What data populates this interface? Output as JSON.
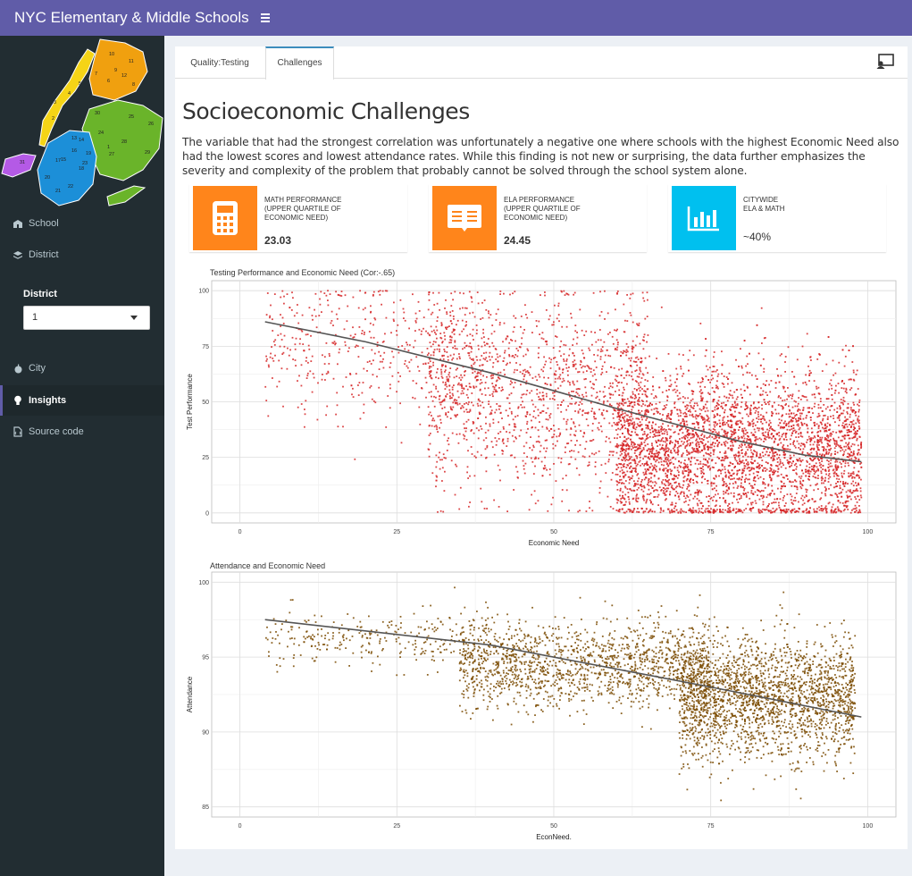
{
  "app": {
    "title": "NYC Elementary & Middle Schools"
  },
  "sidebar": {
    "map_labels": [
      "1",
      "2",
      "3",
      "4",
      "5",
      "6",
      "7",
      "8",
      "9",
      "10",
      "11",
      "12",
      "13",
      "14",
      "15",
      "16",
      "17",
      "18",
      "19",
      "20",
      "21",
      "22",
      "23",
      "24",
      "25",
      "26",
      "27",
      "28",
      "29",
      "30",
      "31"
    ],
    "items": [
      {
        "label": "School",
        "icon": "school-icon"
      },
      {
        "label": "District",
        "icon": "layers-icon"
      },
      {
        "label": "City",
        "icon": "apple-icon"
      },
      {
        "label": "Insights",
        "icon": "lightbulb-icon",
        "active": true
      },
      {
        "label": "Source code",
        "icon": "file-code-icon"
      }
    ],
    "district_label": "District",
    "district_value": "1"
  },
  "tabs": [
    {
      "label": "Quality:Testing"
    },
    {
      "label": "Challenges",
      "active": true
    }
  ],
  "main": {
    "title": "Socioeconomic Challenges",
    "paragraph": "The variable that had the strongest correlation was unfortunately a negative one where schools with the highest Economic Need also had the lowest scores and lowest attendance rates. While this finding is not new or surprising, the data further emphasizes the severity and complexity of the problem that probably cannot be solved through the school system alone."
  },
  "info_boxes": [
    {
      "text": "MATH PERFORMANCE\n(UPPER QUARTILE OF\nECONOMIC NEED)",
      "value": "23.03",
      "color": "#ff851b",
      "icon": "calculator-icon"
    },
    {
      "text": "ELA PERFORMANCE\n(UPPER QUARTILE OF\nECONOMIC NEED)",
      "value": "24.45",
      "color": "#ff851b",
      "icon": "book-icon"
    },
    {
      "text": "CITYWIDE\nELA & MATH",
      "value": "~40%",
      "color": "#00c0ef",
      "icon": "bar-chart-icon"
    }
  ],
  "colors": {
    "header": "#605ca8",
    "sidebar": "#222d32",
    "scatter1": "#d62728",
    "scatter2": "#7a4a00",
    "trend": "#555555"
  },
  "chart_data": [
    {
      "type": "scatter",
      "title": "Testing Performance and Economic Need (Cor:-.65)",
      "xlabel": "Economic Need",
      "ylabel": "Test Performance",
      "xlim": [
        0,
        100
      ],
      "ylim": [
        0,
        100
      ],
      "xticks": [
        0,
        25,
        50,
        75,
        100
      ],
      "yticks": [
        0,
        25,
        50,
        75,
        100
      ],
      "grid": true,
      "color": "#d62728",
      "trend_line": {
        "x": [
          4,
          20,
          40,
          60,
          80,
          90,
          99
        ],
        "y": [
          86,
          77,
          63,
          47,
          32,
          26,
          23
        ]
      },
      "point_clouds": [
        {
          "x": [
            4,
            40
          ],
          "center_y": 75,
          "spread_y": 15,
          "n": 500
        },
        {
          "x": [
            30,
            65
          ],
          "center_y": 52,
          "spread_y": 22,
          "n": 1400
        },
        {
          "x": [
            60,
            99
          ],
          "center_y": 28,
          "spread_y": 18,
          "n": 4000
        }
      ]
    },
    {
      "type": "scatter",
      "title": "Attendance and Economic Need",
      "xlabel": "EconNeed.",
      "ylabel": "Attendance",
      "xlim": [
        0,
        100
      ],
      "ylim": [
        85,
        100
      ],
      "xticks": [
        0,
        25,
        50,
        75,
        100
      ],
      "yticks": [
        85,
        90,
        95,
        100
      ],
      "grid": true,
      "color": "#7a4a00",
      "trend_line": {
        "x": [
          4,
          40,
          75,
          99
        ],
        "y": [
          97.5,
          95.8,
          93.0,
          91.0
        ]
      },
      "point_clouds": [
        {
          "x": [
            4,
            40
          ],
          "center_y": 96.2,
          "spread_y": 0.9,
          "n": 300
        },
        {
          "x": [
            35,
            75
          ],
          "center_y": 94.5,
          "spread_y": 1.4,
          "n": 1500
        },
        {
          "x": [
            70,
            98
          ],
          "center_y": 92.2,
          "spread_y": 2.0,
          "n": 2200
        }
      ]
    }
  ]
}
